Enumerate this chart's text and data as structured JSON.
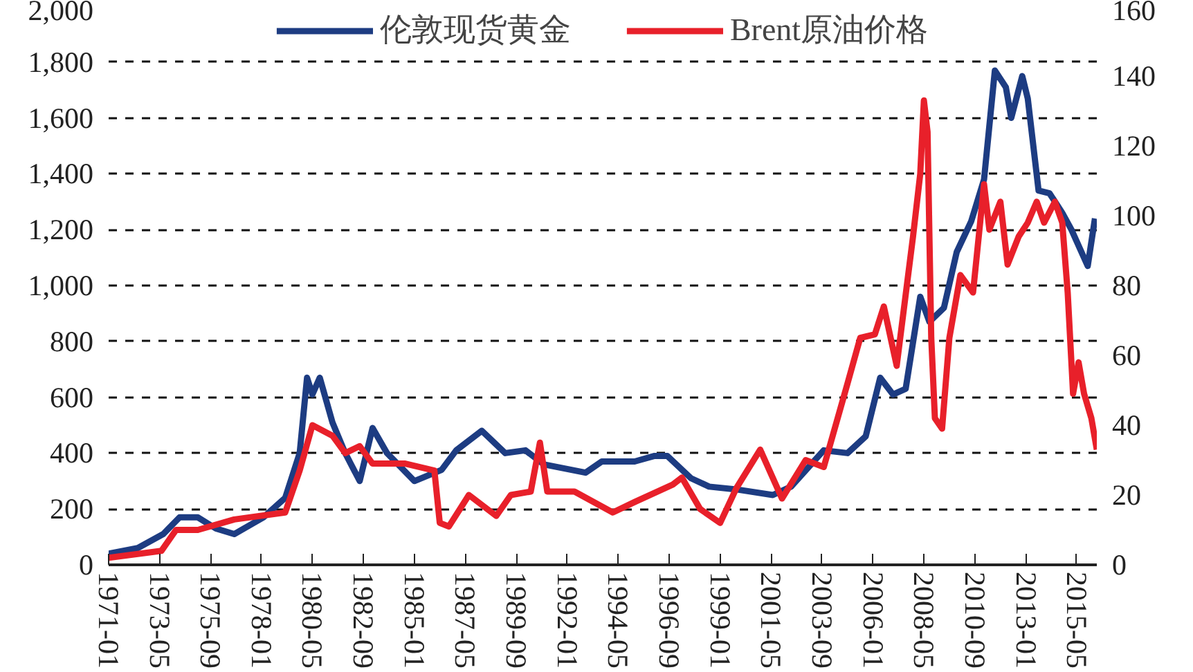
{
  "chart_data": {
    "type": "line",
    "legend": "top",
    "grid": "y",
    "line_style": "solid",
    "marker": "none",
    "xlim": [
      "1971-01",
      "2016-04"
    ],
    "xticks": [
      "1971-01",
      "1973-05",
      "1975-09",
      "1978-01",
      "1980-05",
      "1982-09",
      "1985-01",
      "1987-05",
      "1989-09",
      "1992-01",
      "1994-05",
      "1996-09",
      "1999-01",
      "2001-05",
      "2003-09",
      "2006-01",
      "2008-05",
      "2010-09",
      "2013-01",
      "2015-05"
    ],
    "ylim": [
      0,
      2000
    ],
    "yticks": [
      0,
      {
        "value": 200,
        "label": "200"
      },
      400,
      600,
      800,
      {
        "value": 1000,
        "label": "1,000"
      },
      {
        "value": 1200,
        "label": "1,200"
      },
      {
        "value": 1400,
        "label": "1,400"
      },
      {
        "value": 1600,
        "label": "1,600"
      },
      {
        "value": 1800,
        "label": "1,800"
      },
      {
        "value": 2000,
        "label": "2,000"
      }
    ],
    "y2lim": [
      0,
      160
    ],
    "y2ticks": [
      0,
      20,
      40,
      60,
      80,
      100,
      120,
      140,
      160
    ],
    "series": [
      {
        "name": "伦敦现货黄金",
        "color": "#1d3c82",
        "x": [
          "1971-01",
          "1972-05",
          "1973-07",
          "1974-04",
          "1975-02",
          "1975-12",
          "1976-10",
          "1978-02",
          "1979-02",
          "1979-10",
          "1980-02",
          "1980-05",
          "1980-09",
          "1981-04",
          "1981-11",
          "1982-07",
          "1983-02",
          "1983-10",
          "1985-01",
          "1986-04",
          "1986-12",
          "1988-02",
          "1989-03",
          "1990-02",
          "1990-12",
          "1992-11",
          "1993-08",
          "1995-02",
          "1996-01",
          "1996-08",
          "1997-09",
          "1998-07",
          "1999-10",
          "2001-06",
          "2002-04",
          "2003-10",
          "2004-11",
          "2005-09",
          "2006-05",
          "2006-12",
          "2007-07",
          "2008-03",
          "2008-08",
          "2009-04",
          "2009-11",
          "2010-07",
          "2011-02",
          "2011-08",
          "2012-02",
          "2012-05",
          "2012-11",
          "2013-02",
          "2013-08",
          "2014-02",
          "2014-09",
          "2015-02",
          "2015-11",
          "2016-03"
        ],
        "values": [
          40,
          60,
          110,
          170,
          170,
          130,
          110,
          170,
          240,
          400,
          670,
          610,
          670,
          510,
          400,
          300,
          490,
          400,
          300,
          340,
          410,
          480,
          400,
          410,
          360,
          330,
          370,
          370,
          390,
          390,
          310,
          280,
          270,
          250,
          280,
          410,
          400,
          460,
          670,
          610,
          630,
          960,
          870,
          920,
          1120,
          1230,
          1380,
          1770,
          1710,
          1600,
          1750,
          1670,
          1340,
          1330,
          1260,
          1200,
          1070,
          1240
        ]
      },
      {
        "name": "Brent原油价格",
        "color": "#e8202a",
        "axis": "y2",
        "x": [
          "1971-01",
          "1973-06",
          "1974-02",
          "1975-02",
          "1976-10",
          "1979-02",
          "1979-10",
          "1980-05",
          "1981-04",
          "1981-11",
          "1982-07",
          "1983-02",
          "1984-08",
          "1985-12",
          "1986-03",
          "1986-08",
          "1987-07",
          "1988-10",
          "1989-06",
          "1990-05",
          "1990-10",
          "1991-02",
          "1992-05",
          "1994-02",
          "1995-02",
          "1996-11",
          "1997-04",
          "1998-02",
          "1999-01",
          "1999-10",
          "2000-11",
          "2001-11",
          "2002-12",
          "2003-10",
          "2004-11",
          "2005-06",
          "2006-02",
          "2006-07",
          "2007-02",
          "2007-11",
          "2008-03",
          "2008-05",
          "2008-07",
          "2008-09",
          "2008-11",
          "2009-03",
          "2009-07",
          "2010-01",
          "2010-08",
          "2011-02",
          "2011-05",
          "2011-11",
          "2012-03",
          "2012-09",
          "2013-02",
          "2013-07",
          "2013-11",
          "2014-05",
          "2014-09",
          "2014-12",
          "2015-03",
          "2015-06",
          "2015-09",
          "2016-01",
          "2016-04"
        ],
        "values": [
          2,
          4,
          10,
          10,
          13,
          15,
          27,
          40,
          37,
          32,
          34,
          29,
          29,
          27,
          12,
          11,
          20,
          14,
          20,
          21,
          35,
          21,
          21,
          15,
          18,
          23,
          25,
          16,
          12,
          22,
          33,
          19,
          30,
          28,
          52,
          65,
          66,
          74,
          57,
          94,
          112,
          133,
          124,
          65,
          42,
          39,
          65,
          83,
          78,
          109,
          96,
          104,
          86,
          94,
          98,
          104,
          98,
          104,
          98,
          78,
          49,
          58,
          49,
          42,
          33
        ]
      }
    ]
  }
}
